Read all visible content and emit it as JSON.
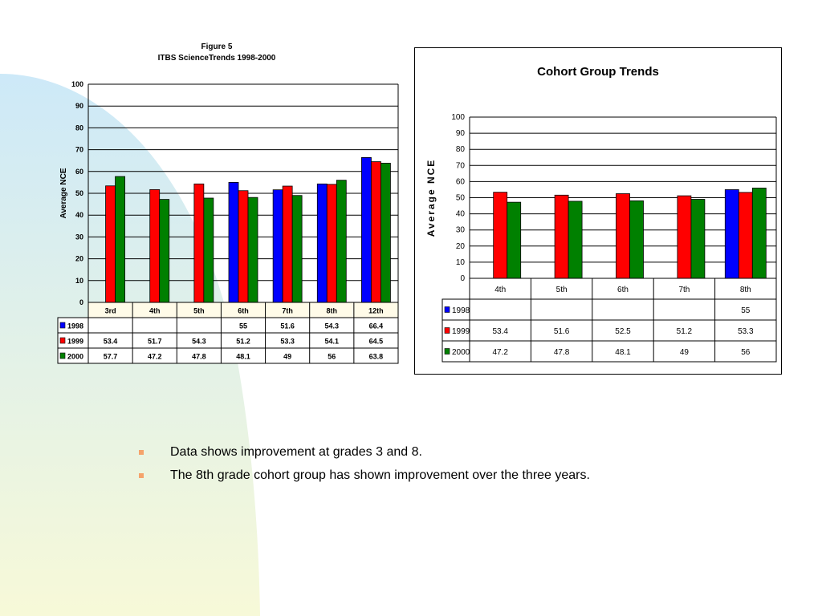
{
  "bullets": [
    "Data shows improvement at grades 3 and 8.",
    "The 8th grade cohort group has shown improvement over the three years."
  ],
  "colors": {
    "series_1998": "#0000ff",
    "series_1999": "#ff0000",
    "series_2000": "#008000",
    "bullet": "#f5a36b",
    "background_blue": "#cde9f8",
    "background_yellow": "#f7f9d8"
  },
  "chart_data": [
    {
      "type": "bar",
      "title": "Figure 5",
      "subtitle": "ITBS ScienceTrends 1998-2000",
      "ylabel": "Average NCE",
      "xlabel": "",
      "ylim": [
        0,
        100
      ],
      "yticks": [
        0,
        10,
        20,
        30,
        40,
        50,
        60,
        70,
        80,
        90,
        100
      ],
      "grid": true,
      "categories": [
        "3rd",
        "4th",
        "5th",
        "6th",
        "7th",
        "8th",
        "12th"
      ],
      "series": [
        {
          "name": "1998",
          "values": [
            null,
            null,
            null,
            55,
            51.6,
            54.3,
            66.4
          ],
          "labels": [
            "",
            "",
            "",
            "55",
            "51.6",
            "54.3",
            "66.4"
          ]
        },
        {
          "name": "1999",
          "values": [
            53.4,
            51.7,
            54.3,
            51.2,
            53.3,
            54.1,
            64.5
          ],
          "labels": [
            "53.4",
            "51.7",
            "54.3",
            "51.2",
            "53.3",
            "54.1",
            "64.5"
          ]
        },
        {
          "name": "2000",
          "values": [
            57.7,
            47.2,
            47.8,
            48.1,
            49,
            56,
            63.8
          ],
          "labels": [
            "57.7",
            "47.2",
            "47.8",
            "48.1",
            "49",
            "56",
            "63.8"
          ]
        }
      ]
    },
    {
      "type": "bar",
      "title": "Cohort Group Trends",
      "ylabel": "Average NCE",
      "xlabel": "",
      "ylim": [
        0,
        100
      ],
      "yticks": [
        0,
        10,
        20,
        30,
        40,
        50,
        60,
        70,
        80,
        90,
        100
      ],
      "grid": true,
      "categories": [
        "4th",
        "5th",
        "6th",
        "7th",
        "8th"
      ],
      "series": [
        {
          "name": "1998",
          "values": [
            null,
            null,
            null,
            null,
            55
          ],
          "labels": [
            "",
            "",
            "",
            "",
            "55"
          ]
        },
        {
          "name": "1999",
          "values": [
            53.4,
            51.6,
            52.5,
            51.2,
            53.3
          ],
          "labels": [
            "53.4",
            "51.6",
            "52.5",
            "51.2",
            "53.3"
          ]
        },
        {
          "name": "2000",
          "values": [
            47.2,
            47.8,
            48.1,
            49,
            56
          ],
          "labels": [
            "47.2",
            "47.8",
            "48.1",
            "49",
            "56"
          ]
        }
      ]
    }
  ]
}
